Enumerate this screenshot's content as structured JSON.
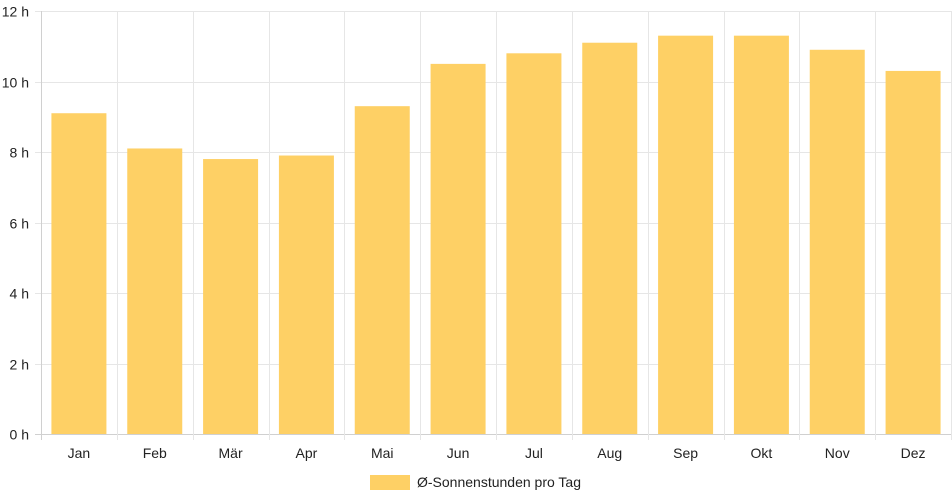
{
  "chart_data": {
    "type": "bar",
    "categories": [
      "Jan",
      "Feb",
      "Mär",
      "Apr",
      "Mai",
      "Jun",
      "Jul",
      "Aug",
      "Sep",
      "Okt",
      "Nov",
      "Dez"
    ],
    "series": [
      {
        "name": "Ø-Sonnenstunden pro Tag",
        "values": [
          9.1,
          8.1,
          7.8,
          7.9,
          9.3,
          10.5,
          10.8,
          11.1,
          11.3,
          11.3,
          10.9,
          10.3
        ],
        "color": "#fed065"
      }
    ],
    "y_ticks": [
      "0 h",
      "2 h",
      "4 h",
      "6 h",
      "8 h",
      "10 h",
      "12 h"
    ],
    "ylim": [
      0,
      12
    ],
    "grid": true,
    "legend_position": "bottom"
  }
}
